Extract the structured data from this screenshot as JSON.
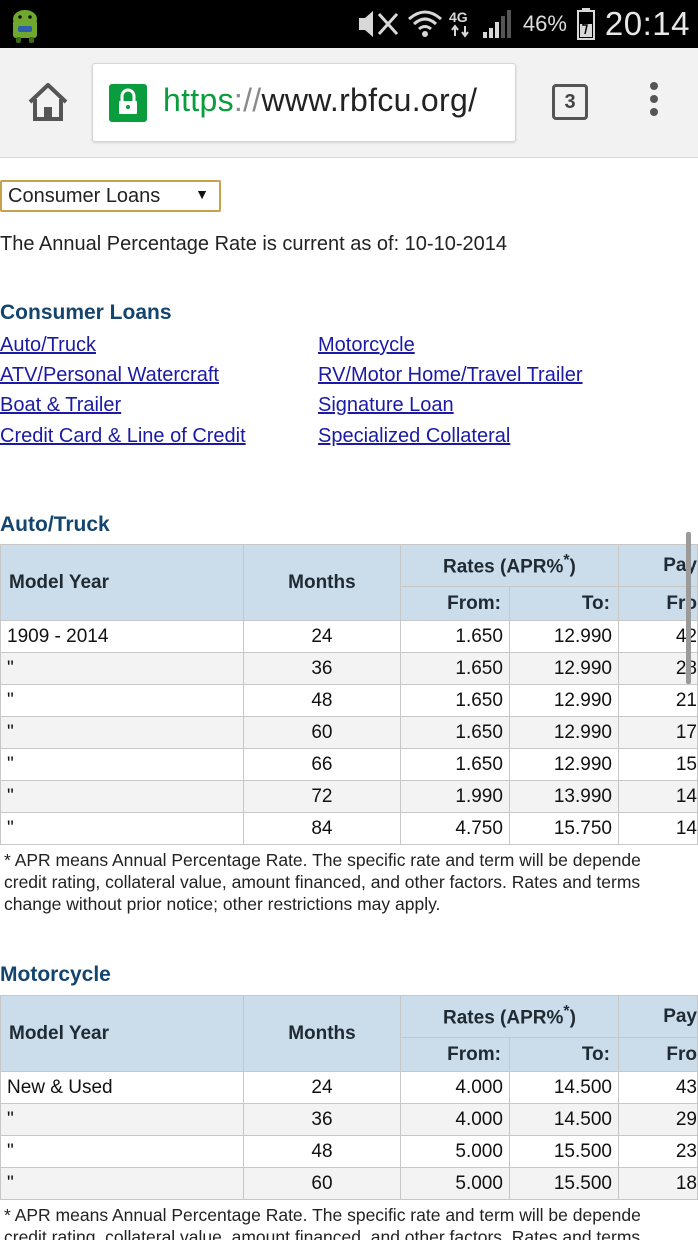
{
  "status_bar": {
    "battery_percent": "46%",
    "time": "20:14",
    "network": "4G",
    "icons": [
      "android-icon",
      "mute-icon",
      "wifi-icon",
      "signal-icon",
      "battery-icon"
    ]
  },
  "browser": {
    "url_protocol": "https",
    "url_slashes": "://",
    "url_host": "www.rbfcu.org/",
    "tab_count": "3",
    "icons": [
      "home-icon",
      "lock-icon",
      "tabs-icon",
      "overflow-menu-icon"
    ]
  },
  "page": {
    "dropdown_selected": "Consumer Loans",
    "as_of_text": "The Annual Percentage Rate is current as of: 10-10-2014",
    "section_title": "Consumer Loans",
    "links_left": [
      "Auto/Truck",
      "ATV/Personal Watercraft",
      "Boat & Trailer",
      "Credit Card & Line of Credit"
    ],
    "links_right": [
      "Motorcycle",
      "RV/Motor Home/Travel Trailer",
      "Signature Loan",
      "Specialized Collateral"
    ],
    "footnote": "* APR means Annual Percentage Rate. The specific rate and term will be depende credit rating, collateral value, amount financed, and other factors. Rates and terms change without prior notice; other restrictions may apply.",
    "footnote_lines": [
      "* APR means Annual Percentage Rate. The specific rate and term will be depende",
      "credit rating, collateral value, amount financed, and other factors. Rates and terms",
      "change without prior notice; other restrictions may apply."
    ],
    "footnote2_lines": [
      "* APR means Annual Percentage Rate. The specific rate and term will be depende",
      "credit rating, collateral value, amount financed, and other factors. Rates and terms"
    ]
  },
  "auto_truck": {
    "title": "Auto/Truck",
    "headers": {
      "model_year": "Model Year",
      "months": "Months",
      "rates": "Rates (APR%",
      "rates_sup": "*",
      "rates_close": ")",
      "from": "From:",
      "to": "To:",
      "pay": "Pay",
      "pay_from": "Fro"
    },
    "rows": [
      {
        "year": "1909 - 2014",
        "months": "24",
        "from": "1.650",
        "to": "12.990",
        "pay": "42"
      },
      {
        "year": "\"",
        "months": "36",
        "from": "1.650",
        "to": "12.990",
        "pay": "28"
      },
      {
        "year": "\"",
        "months": "48",
        "from": "1.650",
        "to": "12.990",
        "pay": "21"
      },
      {
        "year": "\"",
        "months": "60",
        "from": "1.650",
        "to": "12.990",
        "pay": "17"
      },
      {
        "year": "\"",
        "months": "66",
        "from": "1.650",
        "to": "12.990",
        "pay": "15"
      },
      {
        "year": "\"",
        "months": "72",
        "from": "1.990",
        "to": "13.990",
        "pay": "14"
      },
      {
        "year": "\"",
        "months": "84",
        "from": "4.750",
        "to": "15.750",
        "pay": "14"
      }
    ]
  },
  "motorcycle": {
    "title": "Motorcycle",
    "headers": {
      "model_year": "Model Year",
      "months": "Months",
      "rates": "Rates (APR%",
      "rates_sup": "*",
      "rates_close": ")",
      "from": "From:",
      "to": "To:",
      "pay": "Pay",
      "pay_from": "Fro"
    },
    "rows": [
      {
        "year": "New & Used",
        "months": "24",
        "from": "4.000",
        "to": "14.500",
        "pay": "43"
      },
      {
        "year": "\"",
        "months": "36",
        "from": "4.000",
        "to": "14.500",
        "pay": "29"
      },
      {
        "year": "\"",
        "months": "48",
        "from": "5.000",
        "to": "15.500",
        "pay": "23"
      },
      {
        "year": "\"",
        "months": "60",
        "from": "5.000",
        "to": "15.500",
        "pay": "18"
      }
    ]
  }
}
